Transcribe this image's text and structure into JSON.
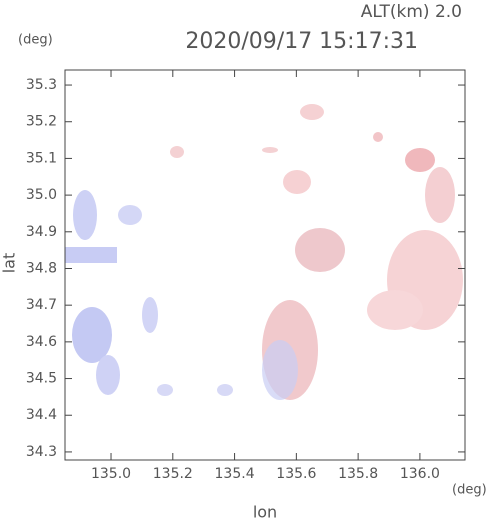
{
  "chart_data": {
    "type": "radar-map",
    "title": "2020/09/17 15:17:31",
    "subtitle": "ALT(km) 2.0",
    "x_label": "lon",
    "y_label": "lat",
    "x_unit": "(deg)",
    "y_unit": "(deg)",
    "xlim": [
      134.851,
      136.146
    ],
    "ylim": [
      34.278,
      35.341
    ],
    "xticks": [
      {
        "value": 135.0,
        "label": "135.0"
      },
      135.2,
      135.4,
      135.6,
      135.8,
      {
        "value": 136.0,
        "label": "136.0"
      }
    ],
    "yticks": [
      34.3,
      34.4,
      34.5,
      34.6,
      34.7,
      34.8,
      34.9,
      {
        "value": 35.0,
        "label": "35.0"
      },
      35.1,
      35.2,
      35.3
    ]
  }
}
